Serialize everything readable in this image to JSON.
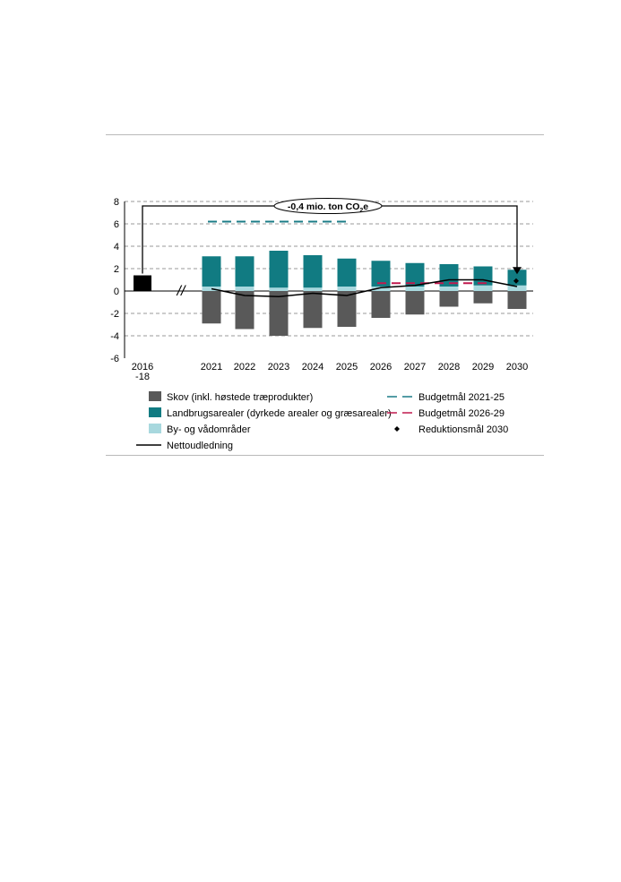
{
  "chart_data": {
    "type": "bar",
    "categories": [
      "2016\n-18",
      "2021",
      "2022",
      "2023",
      "2024",
      "2025",
      "2026",
      "2027",
      "2028",
      "2029",
      "2030"
    ],
    "ylim": [
      -6,
      8
    ],
    "yticks": [
      8,
      6,
      4,
      2,
      0,
      -2,
      -4,
      -6
    ],
    "grid": true,
    "colors": {
      "skov": "#595959",
      "landbrug": "#117b82",
      "by": "#a8d8de",
      "netto": "#000000",
      "baseline": "#000000",
      "budget1": "#1b7c87",
      "budget2": "#c1194e"
    },
    "baseline_value": 1.4,
    "series": [
      {
        "key": "skov",
        "name": "Skov (inkl. høstede træprodukter)",
        "values": [
          null,
          -2.9,
          -3.4,
          -4.0,
          -3.3,
          -3.2,
          -2.4,
          -2.1,
          -1.4,
          -1.1,
          -1.6
        ]
      },
      {
        "key": "landbrug",
        "name": "Landbrugsarealer (dyrkede arealer og græsarealer)",
        "values": [
          null,
          2.7,
          2.7,
          3.3,
          2.9,
          2.5,
          2.3,
          2.1,
          2.0,
          1.7,
          1.4
        ]
      },
      {
        "key": "by",
        "name": "By- og vådområder",
        "values": [
          null,
          0.4,
          0.4,
          0.3,
          0.3,
          0.4,
          0.4,
          0.4,
          0.4,
          0.5,
          0.5
        ]
      },
      {
        "key": "netto",
        "name": "Nettoudledning",
        "values": [
          null,
          0.2,
          -0.4,
          -0.5,
          -0.2,
          -0.4,
          0.3,
          0.5,
          1.0,
          1.0,
          0.4
        ]
      }
    ],
    "budget_2021_25": {
      "name": "Budgetmål 2021-25",
      "value": 6.2,
      "range": [
        1,
        5
      ]
    },
    "budget_2026_29": {
      "name": "Budgetmål 2026-29",
      "value": 0.7,
      "range": [
        6,
        9
      ]
    },
    "target_2030": {
      "name": "Reduktionsmål 2030",
      "value": 0.9
    },
    "annotation": {
      "prefix": "-0,4 mio. ton CO",
      "sub": "2",
      "suffix": "e"
    },
    "axis_break": "//"
  }
}
